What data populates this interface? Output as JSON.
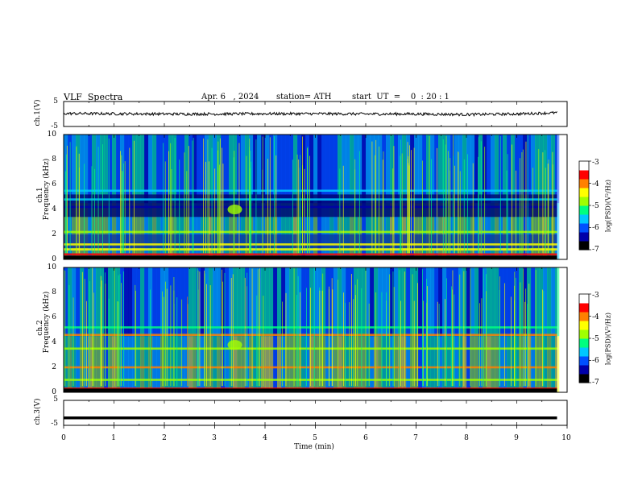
{
  "header": {
    "title": "VLF  Spectra",
    "date": "Apr. 6   , 2024",
    "station": "station= ATH",
    "start_ut": "start  UT  =    0  : 20 : 1"
  },
  "panels": {
    "ch1_wave": {
      "ylabel": "ch.1(V)",
      "yticks": [
        "5",
        "-5"
      ]
    },
    "ch1_spec": {
      "ylabel_line1": "ch.1",
      "ylabel_line2": "Frequency  (kHz)",
      "yticks": [
        "10",
        "8",
        "6",
        "4",
        "2",
        "0"
      ]
    },
    "ch2_spec": {
      "ylabel_line1": "ch.2",
      "ylabel_line2": "Frequency  (kHz)",
      "yticks": [
        "10",
        "8",
        "6",
        "4",
        "2",
        "0"
      ]
    },
    "ch3_wave": {
      "ylabel": "ch.3(V)",
      "yticks": [
        "5",
        "-5"
      ]
    }
  },
  "x_axis": {
    "label": "Time  (min)",
    "ticks": [
      "0",
      "1",
      "2",
      "3",
      "4",
      "5",
      "6",
      "7",
      "8",
      "9",
      "10"
    ]
  },
  "colorbar": {
    "label": "log(PSD)(V²/Hz)",
    "ticks": [
      "-3",
      "-4",
      "-5",
      "-6",
      "-7"
    ],
    "colors": [
      "#000000",
      "#0000aa",
      "#0050ff",
      "#00c8ff",
      "#00ff80",
      "#a0ff00",
      "#ffff00",
      "#ff8000",
      "#ff0000",
      "#ffffff"
    ]
  },
  "chart_data": [
    {
      "type": "line",
      "name": "ch.1 waveform",
      "xlabel": "Time  (min)",
      "ylabel": "ch.1(V)",
      "xlim": [
        0,
        10
      ],
      "ylim": [
        -5,
        5
      ],
      "x": [
        0.0,
        1.0,
        2.0,
        3.0,
        4.0,
        5.0,
        6.0,
        7.0,
        8.0,
        9.0,
        9.8
      ],
      "values": [
        0.2,
        0.1,
        0.0,
        0.0,
        0.1,
        0.1,
        0.0,
        0.0,
        -0.2,
        0.0,
        0.5
      ]
    },
    {
      "type": "heatmap",
      "name": "ch.1 spectrogram",
      "xlabel": "Time  (min)",
      "ylabel": "Frequency  (kHz)",
      "xlim": [
        0,
        10
      ],
      "ylim": [
        0,
        10
      ],
      "data_end_min": 9.8,
      "colorbar_range": [
        -7,
        -3
      ],
      "bands_khz": [
        {
          "f": 0.4,
          "level": -3.3
        },
        {
          "f": 0.8,
          "level": -4.2
        },
        {
          "f": 1.2,
          "level": -4.5
        },
        {
          "f": 2.2,
          "level": -4.8
        },
        {
          "f": 4.2,
          "level": -6.5
        },
        {
          "f": 4.8,
          "level": -5.5
        },
        {
          "f": 5.5,
          "level": -5.8
        }
      ],
      "spot": {
        "t": 3.4,
        "f": 4.0,
        "level": -4.6
      }
    },
    {
      "type": "heatmap",
      "name": "ch.2 spectrogram",
      "xlabel": "Time  (min)",
      "ylabel": "Frequency  (kHz)",
      "xlim": [
        0,
        10
      ],
      "ylim": [
        0,
        10
      ],
      "data_end_min": 9.8,
      "colorbar_range": [
        -7,
        -3
      ],
      "bands_khz": [
        {
          "f": 0.3,
          "level": -3.3
        },
        {
          "f": 1.0,
          "level": -4.6
        },
        {
          "f": 2.0,
          "level": -3.8
        },
        {
          "f": 3.5,
          "level": -5.0
        },
        {
          "f": 4.6,
          "level": -4.0
        },
        {
          "f": 5.2,
          "level": -5.2
        }
      ],
      "spot": {
        "t": 3.4,
        "f": 3.8,
        "level": -4.8
      }
    },
    {
      "type": "line",
      "name": "ch.3 waveform",
      "xlabel": "Time  (min)",
      "ylabel": "ch.3(V)",
      "xlim": [
        0,
        10
      ],
      "ylim": [
        -5,
        5
      ],
      "x": [
        0.0,
        9.8
      ],
      "values": [
        -2.0,
        -2.0
      ]
    }
  ]
}
